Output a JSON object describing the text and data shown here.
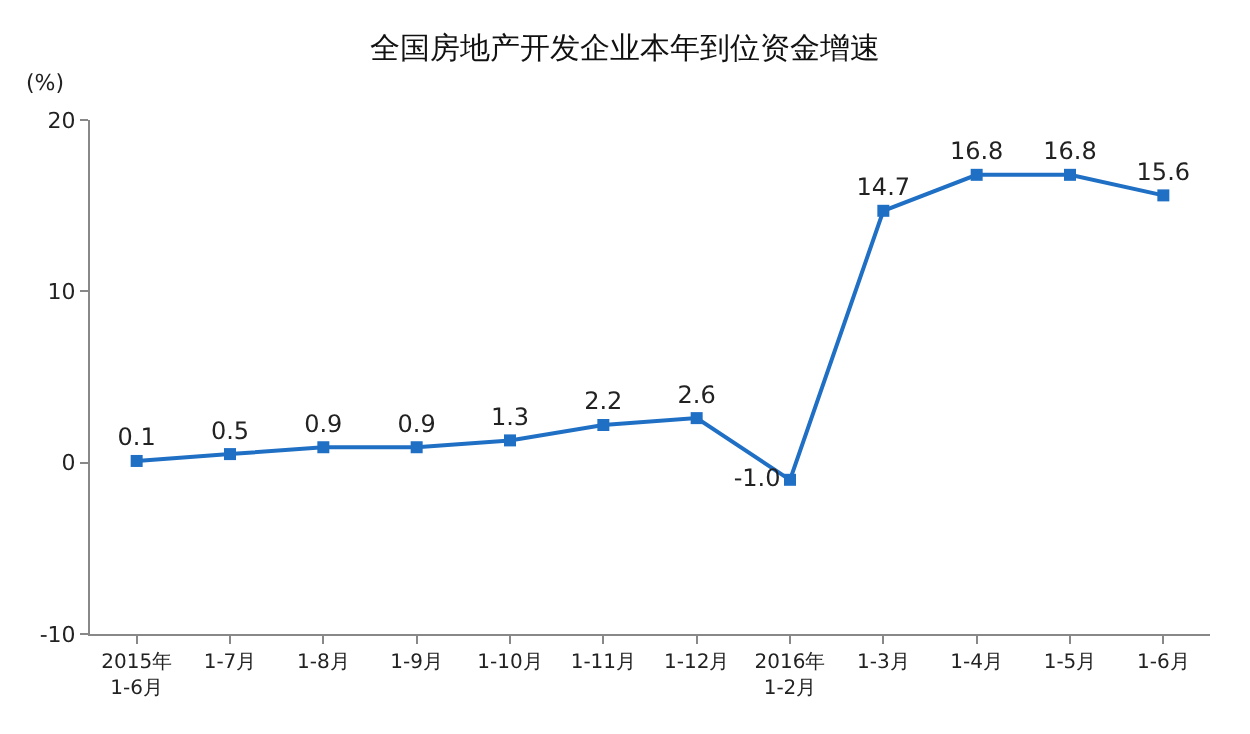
{
  "chart_data": {
    "type": "line",
    "title": "全国房地产开发企业本年到位资金增速",
    "ylabel": "(%)",
    "categories": [
      "2015年\n1-6月",
      "1-7月",
      "1-8月",
      "1-9月",
      "1-10月",
      "1-11月",
      "1-12月",
      "2016年\n1-2月",
      "1-3月",
      "1-4月",
      "1-5月",
      "1-6月"
    ],
    "series": [
      {
        "color": "#1f6fc5",
        "values": [
          0.1,
          0.5,
          0.9,
          0.9,
          1.3,
          2.2,
          2.6,
          -1.0,
          14.7,
          16.8,
          16.8,
          15.6
        ],
        "value_labels": [
          "0.1",
          "0.5",
          "0.9",
          "0.9",
          "1.3",
          "2.2",
          "2.6",
          "-1.0",
          "14.7",
          "16.8",
          "16.8",
          "15.6"
        ]
      }
    ],
    "ylim": [
      -10,
      20
    ],
    "yticks": [
      -10,
      0,
      10,
      20
    ],
    "grid": false,
    "marker": "square",
    "line_style": "solid"
  }
}
